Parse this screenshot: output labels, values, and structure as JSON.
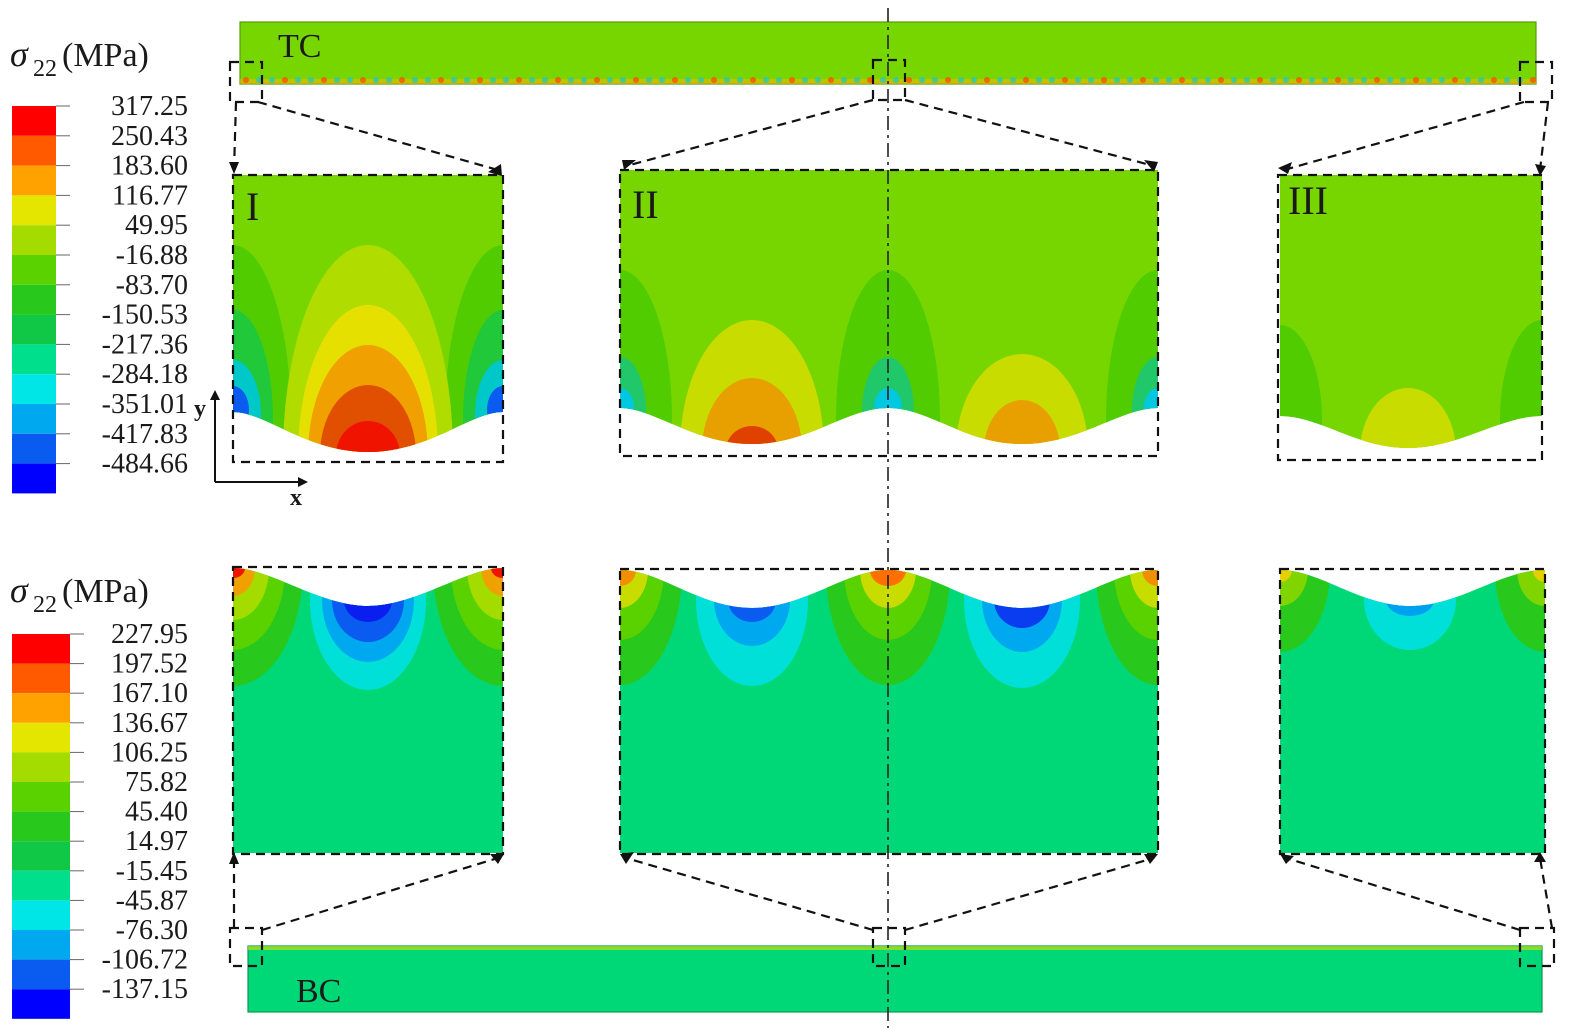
{
  "legend_top": {
    "title_symbol": "σ",
    "title_subscript": "22",
    "title_unit": " (MPa)",
    "values": [
      "317.25",
      "250.43",
      "183.60",
      "116.77",
      "49.95",
      "-16.88",
      "-83.70",
      "-150.53",
      "-217.36",
      "-284.18",
      "-351.01",
      "-417.83",
      "-484.66"
    ],
    "colors": [
      "#ff0000",
      "#ff5a00",
      "#ffa200",
      "#e4e600",
      "#a4dc00",
      "#5ad200",
      "#28c81c",
      "#10c846",
      "#00e08c",
      "#00e6e6",
      "#00a8f0",
      "#0a5cf0",
      "#0000ff"
    ]
  },
  "legend_bottom": {
    "title_symbol": "σ",
    "title_subscript": "22",
    "title_unit": " (MPa)",
    "values": [
      "227.95",
      "197.52",
      "167.10",
      "136.67",
      "106.25",
      "75.82",
      "45.40",
      "14.97",
      "-15.45",
      "-45.87",
      "-76.30",
      "-106.72",
      "-137.15"
    ],
    "colors": [
      "#ff0000",
      "#ff5a00",
      "#ffa200",
      "#e4e600",
      "#a4dc00",
      "#5ad200",
      "#28c81c",
      "#10c846",
      "#00e08c",
      "#00e6e6",
      "#00a8f0",
      "#0a5cf0",
      "#0000ff"
    ]
  },
  "labels": {
    "top_coating": "TC",
    "bottom_coating": "BC",
    "region_1": "I",
    "region_2": "II",
    "region_3": "III",
    "axis_x": "x",
    "axis_y": "y"
  }
}
